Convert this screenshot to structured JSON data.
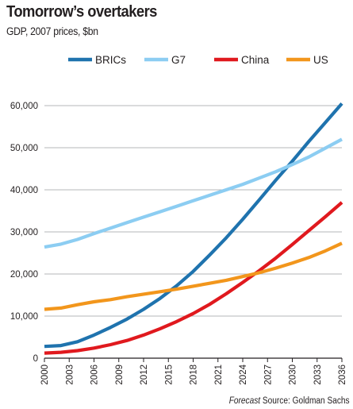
{
  "title": "Tomorrow’s overtakers",
  "subtitle": "GDP, 2007 prices, $bn",
  "footer": {
    "forecast": "Forecast",
    "source": "Source: Goldman Sachs"
  },
  "colors": {
    "BRICs": "#1f73ae",
    "G7": "#8ccdf2",
    "China": "#e0191e",
    "US": "#f2961c"
  },
  "chart_data": {
    "type": "line",
    "title": "Tomorrow’s overtakers",
    "subtitle": "GDP, 2007 prices, $bn",
    "xlabel": "",
    "ylabel": "",
    "xlim": [
      2000,
      2036
    ],
    "ylim": [
      0,
      60000
    ],
    "grid": true,
    "legend": "top",
    "x_ticks": [
      2000,
      2003,
      2006,
      2009,
      2012,
      2015,
      2018,
      2021,
      2024,
      2027,
      2030,
      2033,
      2036
    ],
    "x_tick_labels": [
      "2000",
      "2003",
      "2006",
      "2009",
      "2012",
      "2015",
      "2018",
      "2021",
      "2024",
      "2027",
      "2030",
      "2033",
      "2036"
    ],
    "y_ticks": [
      0,
      10000,
      20000,
      30000,
      40000,
      50000,
      60000
    ],
    "y_tick_labels": [
      "0",
      "10,000",
      "20,000",
      "30,000",
      "40,000",
      "50,000",
      "60,000"
    ],
    "series": [
      {
        "name": "BRICs",
        "color": "#1f73ae",
        "x": [
          2000,
          2002,
          2004,
          2006,
          2008,
          2010,
          2012,
          2014,
          2016,
          2018,
          2020,
          2022,
          2024,
          2026,
          2028,
          2030,
          2032,
          2034,
          2036
        ],
        "y": [
          2800,
          3000,
          3900,
          5500,
          7300,
          9300,
          11600,
          14200,
          17200,
          20600,
          24500,
          28600,
          33000,
          37600,
          42300,
          46800,
          51500,
          56000,
          60500
        ]
      },
      {
        "name": "G7",
        "color": "#8ccdf2",
        "x": [
          2000,
          2002,
          2004,
          2006,
          2008,
          2010,
          2012,
          2014,
          2016,
          2018,
          2020,
          2022,
          2024,
          2026,
          2028,
          2030,
          2032,
          2034,
          2036
        ],
        "y": [
          26400,
          27100,
          28200,
          29600,
          30900,
          32200,
          33500,
          34800,
          36100,
          37400,
          38700,
          40000,
          41300,
          42800,
          44300,
          46000,
          47800,
          49900,
          52000
        ]
      },
      {
        "name": "China",
        "color": "#e0191e",
        "x": [
          2000,
          2002,
          2004,
          2006,
          2008,
          2010,
          2012,
          2014,
          2016,
          2018,
          2020,
          2022,
          2024,
          2026,
          2028,
          2030,
          2032,
          2034,
          2036
        ],
        "y": [
          1200,
          1400,
          1800,
          2400,
          3200,
          4200,
          5500,
          7000,
          8700,
          10600,
          12800,
          15300,
          18000,
          20800,
          23800,
          27000,
          30300,
          33600,
          37000
        ]
      },
      {
        "name": "US",
        "color": "#f2961c",
        "x": [
          2000,
          2002,
          2004,
          2006,
          2008,
          2010,
          2012,
          2014,
          2016,
          2018,
          2020,
          2022,
          2024,
          2026,
          2028,
          2030,
          2032,
          2034,
          2036
        ],
        "y": [
          11600,
          11900,
          12700,
          13400,
          13900,
          14600,
          15200,
          15800,
          16400,
          17100,
          17800,
          18500,
          19400,
          20300,
          21400,
          22600,
          23900,
          25500,
          27300
        ]
      }
    ]
  }
}
